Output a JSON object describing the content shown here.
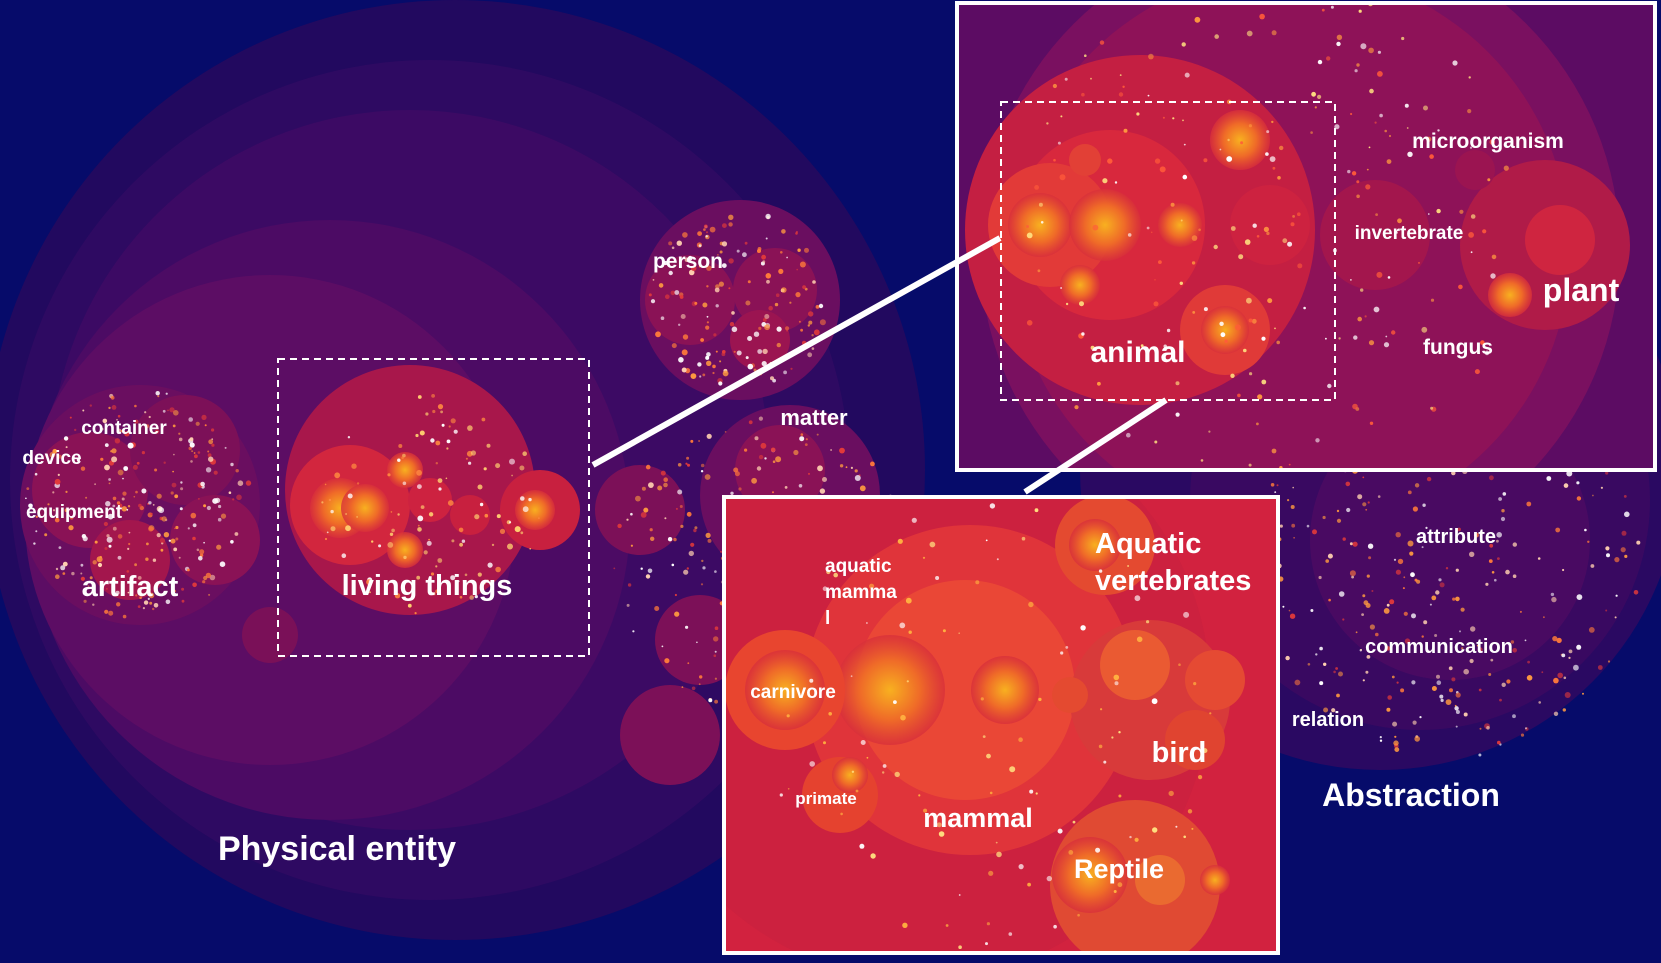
{
  "labels": {
    "physical_entity": "Physical entity",
    "artifact": "artifact",
    "container": "container",
    "device": "device",
    "equipment": "equipment",
    "living_things": "living things",
    "person": "person",
    "matter": "matter",
    "abstraction": "Abstraction",
    "attribute": "attribute",
    "communication": "communication",
    "relation": "relation",
    "animal": "animal",
    "invertebrate": "invertebrate",
    "microorganism": "microorganism",
    "plant": "plant",
    "fungus": "fungus",
    "aquatic_vertebrates_1": "Aquatic",
    "aquatic_vertebrates_2": "vertebrates",
    "aquatic_mammal_1": "aquatic",
    "aquatic_mammal_2": "mamma",
    "aquatic_mammal_3": "l",
    "carnivore": "carnivore",
    "primate": "primate",
    "mammal": "mammal",
    "bird": "bird",
    "reptile": "Reptile"
  },
  "colors": {
    "background": "#060b6a",
    "outer_ring": "#2a0a62",
    "mid_ring": "#4a0a66",
    "inner_ring": "#74105f",
    "hot_core": "#e02a3a",
    "bright_core": "#f6a020",
    "frame": "#ffffff"
  }
}
